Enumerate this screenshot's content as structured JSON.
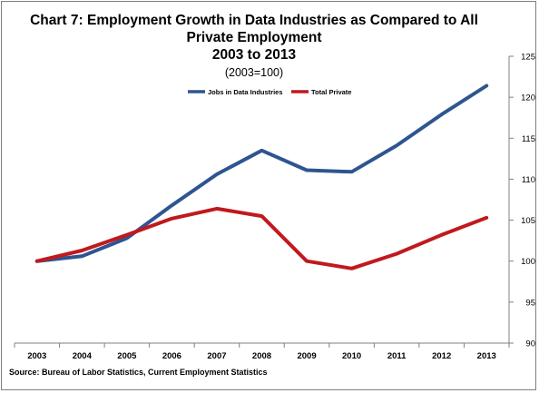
{
  "chart_data": {
    "type": "line",
    "title_lines": [
      "Chart 7:  Employment Growth in Data Industries as Compared to All",
      "Private Employment",
      "2003 to 2013"
    ],
    "subtitle": "(2003=100)",
    "categories": [
      "2003",
      "2004",
      "2005",
      "2006",
      "2007",
      "2008",
      "2009",
      "2010",
      "2011",
      "2012",
      "2013"
    ],
    "series": [
      {
        "name": "Jobs in Data Industries",
        "color": "#2e5590",
        "values": [
          100.0,
          100.6,
          102.8,
          106.8,
          110.6,
          113.5,
          111.1,
          110.9,
          114.1,
          117.9,
          121.4
        ]
      },
      {
        "name": "Total Private",
        "color": "#c0191e",
        "values": [
          100.0,
          101.3,
          103.2,
          105.2,
          106.4,
          105.5,
          100.0,
          99.1,
          100.9,
          103.2,
          105.3
        ]
      }
    ],
    "ylim": [
      90,
      125
    ],
    "yticks": [
      90,
      95,
      100,
      105,
      110,
      115,
      120,
      125
    ],
    "y_axis_side": "right",
    "legend_position": "top",
    "grid": false
  },
  "source": "Source: Bureau of Labor Statistics, Current Employment Statistics"
}
